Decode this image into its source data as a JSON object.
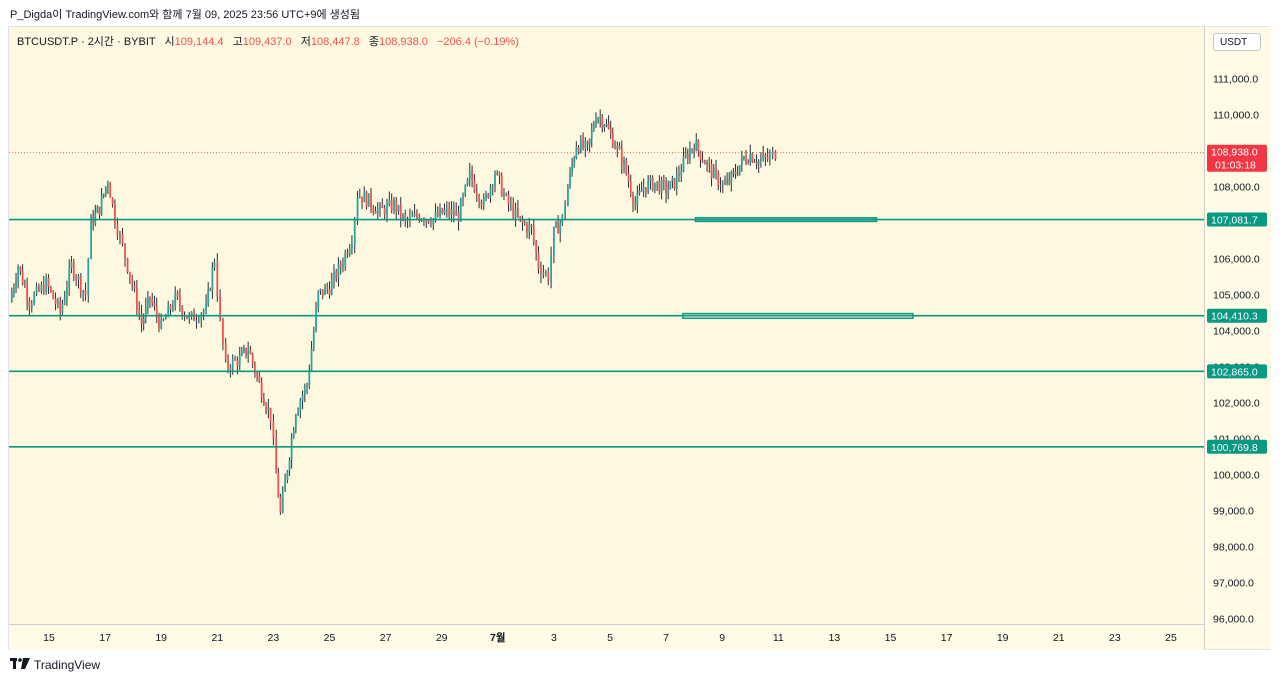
{
  "caption": "P_Digda이 TradingView.com와 함께 7월 09, 2025 23:56 UTC+9에 생성됨",
  "legend": {
    "symbol": "BTCUSDT.P · 2시간 · BYBIT",
    "open_label": "시",
    "open": "109,144.4",
    "high_label": "고",
    "high": "109,437.0",
    "low_label": "저",
    "low": "108,447.8",
    "close_label": "종",
    "close": "108,938.0",
    "change": "−206.4 (−0.19%)"
  },
  "currency_button": "USDT",
  "logo_text": "TradingView",
  "colors": {
    "up": "#26a69a",
    "down": "#ef5350",
    "level": "#089981",
    "last_price": "#f23645",
    "background": "#fef8e1"
  },
  "chart_data": {
    "type": "candlestick",
    "ylim": [
      95800,
      111900
    ],
    "y_ticks": [
      {
        "value": 96000,
        "label": "96,000.0"
      },
      {
        "value": 97000,
        "label": "97,000.0"
      },
      {
        "value": 98000,
        "label": "98,000.0"
      },
      {
        "value": 99000,
        "label": "99,000.0"
      },
      {
        "value": 100000,
        "label": "100,000.0"
      },
      {
        "value": 101000,
        "label": "101,000.0"
      },
      {
        "value": 102000,
        "label": "102,000.0"
      },
      {
        "value": 103000,
        "label": "103,000.0"
      },
      {
        "value": 104000,
        "label": "104,000.0"
      },
      {
        "value": 105000,
        "label": "105,000.0"
      },
      {
        "value": 106000,
        "label": "106,000.0"
      },
      {
        "value": 108000,
        "label": "108,000.0"
      },
      {
        "value": 110000,
        "label": "110,000.0"
      },
      {
        "value": 111000,
        "label": "111,000.0"
      }
    ],
    "x_ticks": [
      {
        "day": 15,
        "label": "15"
      },
      {
        "day": 17,
        "label": "17"
      },
      {
        "day": 19,
        "label": "19"
      },
      {
        "day": 21,
        "label": "21"
      },
      {
        "day": 23,
        "label": "23"
      },
      {
        "day": 25,
        "label": "25"
      },
      {
        "day": 27,
        "label": "27"
      },
      {
        "day": 29,
        "label": "29"
      },
      {
        "day": 31,
        "label": "7월"
      },
      {
        "day": 33,
        "label": "3"
      },
      {
        "day": 35,
        "label": "5"
      },
      {
        "day": 37,
        "label": "7"
      },
      {
        "day": 39,
        "label": "9"
      },
      {
        "day": 41,
        "label": "11"
      },
      {
        "day": 43,
        "label": "13"
      },
      {
        "day": 45,
        "label": "15"
      },
      {
        "day": 47,
        "label": "17"
      },
      {
        "day": 49,
        "label": "19"
      },
      {
        "day": 51,
        "label": "21"
      },
      {
        "day": 53,
        "label": "23"
      },
      {
        "day": 55,
        "label": "25"
      }
    ],
    "levels": [
      {
        "value": 107081.7,
        "label": "107,081.7"
      },
      {
        "value": 104410.3,
        "label": "104,410.3"
      },
      {
        "value": 102865.0,
        "label": "102,865.0"
      },
      {
        "value": 100769.8,
        "label": "100,769.8"
      }
    ],
    "zones": [
      {
        "from_day": 38.05,
        "to_day": 44.5,
        "low": 107030,
        "high": 107130
      },
      {
        "from_day": 37.6,
        "to_day": 45.8,
        "low": 104340,
        "high": 104470
      }
    ],
    "last_price": {
      "value": 108938.0,
      "label": "108,938.0",
      "countdown": "01:03:18"
    },
    "path_points": [
      {
        "day": 13.6,
        "price": 104800
      },
      {
        "day": 13.9,
        "price": 105800
      },
      {
        "day": 14.3,
        "price": 104800
      },
      {
        "day": 14.9,
        "price": 105300
      },
      {
        "day": 15.4,
        "price": 104500
      },
      {
        "day": 15.8,
        "price": 105800
      },
      {
        "day": 16.3,
        "price": 105000
      },
      {
        "day": 16.5,
        "price": 107000
      },
      {
        "day": 16.8,
        "price": 107400
      },
      {
        "day": 17.1,
        "price": 108200
      },
      {
        "day": 17.35,
        "price": 107100
      },
      {
        "day": 17.8,
        "price": 105800
      },
      {
        "day": 18.3,
        "price": 104200
      },
      {
        "day": 18.6,
        "price": 104900
      },
      {
        "day": 19.0,
        "price": 104100
      },
      {
        "day": 19.5,
        "price": 104900
      },
      {
        "day": 20.0,
        "price": 104300
      },
      {
        "day": 20.6,
        "price": 104600
      },
      {
        "day": 20.9,
        "price": 106000
      },
      {
        "day": 21.1,
        "price": 104200
      },
      {
        "day": 21.3,
        "price": 103000
      },
      {
        "day": 21.8,
        "price": 103200
      },
      {
        "day": 22.1,
        "price": 103500
      },
      {
        "day": 22.5,
        "price": 102500
      },
      {
        "day": 22.9,
        "price": 101600
      },
      {
        "day": 23.1,
        "price": 100000
      },
      {
        "day": 23.25,
        "price": 98900
      },
      {
        "day": 23.5,
        "price": 100200
      },
      {
        "day": 23.8,
        "price": 101800
      },
      {
        "day": 24.2,
        "price": 102500
      },
      {
        "day": 24.6,
        "price": 105000
      },
      {
        "day": 25.0,
        "price": 105200
      },
      {
        "day": 25.4,
        "price": 105800
      },
      {
        "day": 25.8,
        "price": 106600
      },
      {
        "day": 26.0,
        "price": 107800
      },
      {
        "day": 26.4,
        "price": 107600
      },
      {
        "day": 26.8,
        "price": 107300
      },
      {
        "day": 27.3,
        "price": 107500
      },
      {
        "day": 27.7,
        "price": 107000
      },
      {
        "day": 28.2,
        "price": 107200
      },
      {
        "day": 28.7,
        "price": 107100
      },
      {
        "day": 29.1,
        "price": 107300
      },
      {
        "day": 29.6,
        "price": 107200
      },
      {
        "day": 30.0,
        "price": 108300
      },
      {
        "day": 30.5,
        "price": 107500
      },
      {
        "day": 30.9,
        "price": 108400
      },
      {
        "day": 31.3,
        "price": 107600
      },
      {
        "day": 31.8,
        "price": 107000
      },
      {
        "day": 32.2,
        "price": 106800
      },
      {
        "day": 32.45,
        "price": 105800
      },
      {
        "day": 32.8,
        "price": 105500
      },
      {
        "day": 33.0,
        "price": 106700
      },
      {
        "day": 33.3,
        "price": 107100
      },
      {
        "day": 33.5,
        "price": 108000
      },
      {
        "day": 33.8,
        "price": 109200
      },
      {
        "day": 34.2,
        "price": 109000
      },
      {
        "day": 34.5,
        "price": 110000
      },
      {
        "day": 34.8,
        "price": 109800
      },
      {
        "day": 35.1,
        "price": 109300
      },
      {
        "day": 35.5,
        "price": 108600
      },
      {
        "day": 35.9,
        "price": 107500
      },
      {
        "day": 36.2,
        "price": 108000
      },
      {
        "day": 36.6,
        "price": 108100
      },
      {
        "day": 37.0,
        "price": 107900
      },
      {
        "day": 37.3,
        "price": 108100
      },
      {
        "day": 37.7,
        "price": 108800
      },
      {
        "day": 38.0,
        "price": 109200
      },
      {
        "day": 38.3,
        "price": 108800
      },
      {
        "day": 38.7,
        "price": 108300
      },
      {
        "day": 39.1,
        "price": 108000
      },
      {
        "day": 39.4,
        "price": 108300
      },
      {
        "day": 39.7,
        "price": 108700
      },
      {
        "day": 40.0,
        "price": 108900
      },
      {
        "day": 40.3,
        "price": 108700
      },
      {
        "day": 40.7,
        "price": 108800
      },
      {
        "day": 40.9,
        "price": 108940
      }
    ]
  }
}
